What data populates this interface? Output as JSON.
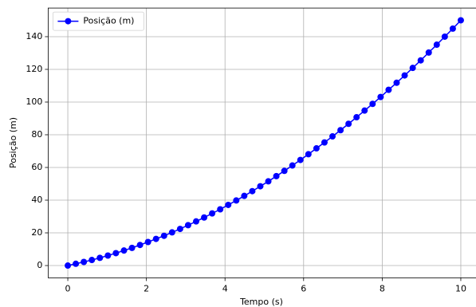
{
  "chart_data": {
    "type": "line",
    "xlabel": "Tempo (s)",
    "ylabel": "Posição (m)",
    "x": [
      0,
      0.204,
      0.408,
      0.612,
      0.816,
      1.02,
      1.224,
      1.429,
      1.633,
      1.837,
      2.041,
      2.245,
      2.449,
      2.653,
      2.857,
      3.061,
      3.265,
      3.469,
      3.673,
      3.878,
      4.082,
      4.286,
      4.49,
      4.694,
      4.898,
      5.102,
      5.306,
      5.51,
      5.714,
      5.918,
      6.122,
      6.327,
      6.531,
      6.735,
      6.939,
      7.143,
      7.347,
      7.551,
      7.755,
      7.959,
      8.163,
      8.367,
      8.571,
      8.776,
      8.98,
      9.184,
      9.388,
      9.592,
      9.796,
      10
    ],
    "series": [
      {
        "name": "Posição (m)",
        "color": "#0000ff",
        "values": [
          0,
          1.1,
          2.2,
          3.4,
          4.7,
          6.1,
          7.6,
          9.2,
          10.8,
          12.6,
          14.4,
          16.3,
          18.2,
          20.3,
          22.4,
          24.7,
          27.0,
          29.4,
          31.9,
          34.4,
          37.1,
          39.8,
          42.6,
          45.5,
          48.5,
          51.5,
          54.7,
          57.9,
          61.2,
          64.6,
          68.1,
          71.7,
          75.3,
          79.0,
          82.8,
          86.7,
          90.7,
          94.8,
          98.9,
          103.1,
          107.5,
          111.8,
          116.3,
          120.9,
          125.5,
          130.3,
          135.1,
          140.0,
          144.9,
          150
        ]
      }
    ],
    "xlim": [
      -0.5,
      10.5
    ],
    "xticks": [
      0,
      2,
      4,
      6,
      8,
      10
    ],
    "ylim": [
      -7.5,
      157.5
    ],
    "yticks": [
      0,
      20,
      40,
      60,
      80,
      100,
      120,
      140
    ],
    "grid": true,
    "legend": "upper left"
  }
}
